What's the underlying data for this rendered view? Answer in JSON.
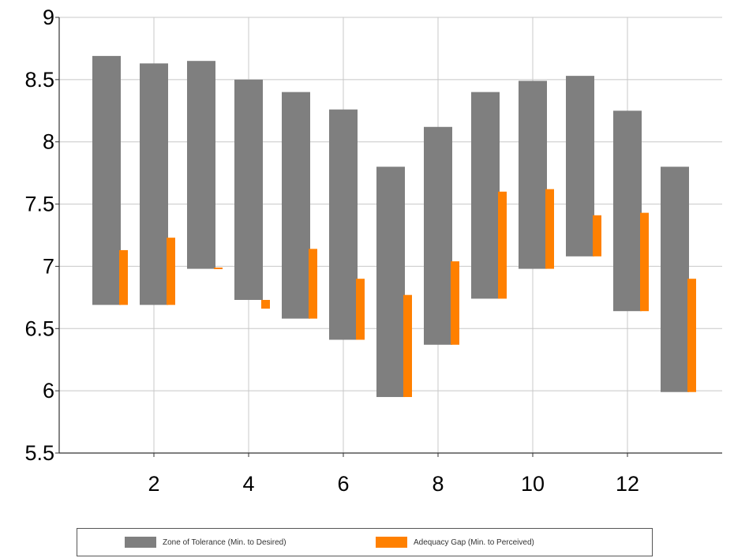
{
  "chart_data": {
    "type": "bar",
    "subtype": "floating-range",
    "x": [
      1,
      2,
      3,
      4,
      5,
      6,
      7,
      8,
      9,
      10,
      11,
      12,
      13
    ],
    "x_ticks": [
      2,
      4,
      6,
      8,
      10,
      12
    ],
    "x_tick_labels": [
      "2",
      "4",
      "6",
      "8",
      "10",
      "12"
    ],
    "y_ticks": [
      5.5,
      6,
      6.5,
      7,
      7.5,
      8,
      8.5,
      9
    ],
    "y_tick_labels": [
      "5.5",
      "6",
      "6.5",
      "7",
      "7.5",
      "8",
      "8.5",
      "9"
    ],
    "xlim": [
      0,
      14
    ],
    "ylim": [
      5.5,
      9
    ],
    "grid": true,
    "legend_position": "bottom",
    "series": [
      {
        "name": "Zone of Tolerance (Min. to Desired)",
        "color": "#7f7f7f",
        "low": [
          6.69,
          6.69,
          6.98,
          6.73,
          6.58,
          6.41,
          5.95,
          6.37,
          6.74,
          6.98,
          7.08,
          6.64,
          5.99
        ],
        "high": [
          8.69,
          8.63,
          8.65,
          8.5,
          8.4,
          8.26,
          7.8,
          8.12,
          8.4,
          8.49,
          8.53,
          8.25,
          7.8
        ]
      },
      {
        "name": "Adequacy Gap (Min. to Perceived)",
        "color": "#ff8000",
        "low": [
          6.69,
          6.69,
          6.98,
          6.66,
          6.58,
          6.41,
          5.95,
          6.37,
          6.74,
          6.98,
          7.08,
          6.64,
          5.99
        ],
        "high": [
          7.13,
          7.23,
          6.99,
          6.73,
          7.14,
          6.9,
          6.77,
          7.04,
          7.6,
          7.62,
          7.41,
          7.43,
          6.9
        ]
      }
    ]
  }
}
